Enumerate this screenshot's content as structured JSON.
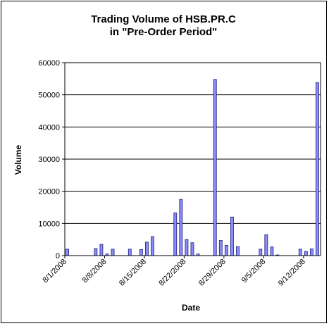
{
  "chart_data": {
    "type": "bar",
    "title_lines": [
      "Trading Volume of HSB.PR.C",
      "in \"Pre-Order Period\""
    ],
    "xlabel": "Date",
    "ylabel": "Volume",
    "ylim": [
      0,
      60000
    ],
    "y_ticks": [
      "0",
      "10000",
      "20000",
      "30000",
      "40000",
      "50000",
      "60000"
    ],
    "x_start": "2008-08-01",
    "x_end": "2008-09-15",
    "x_ticks": [
      {
        "date": "2008-08-01",
        "label": "8/1/2008"
      },
      {
        "date": "2008-08-08",
        "label": "8/8/2008"
      },
      {
        "date": "2008-08-15",
        "label": "8/15/2008"
      },
      {
        "date": "2008-08-22",
        "label": "8/22/2008"
      },
      {
        "date": "2008-08-29",
        "label": "8/29/2008"
      },
      {
        "date": "2008-09-05",
        "label": "9/5/2008"
      },
      {
        "date": "2008-09-12",
        "label": "9/12/2008"
      }
    ],
    "bars": [
      {
        "date": "2008-08-01",
        "value": 2000
      },
      {
        "date": "2008-08-06",
        "value": 2200
      },
      {
        "date": "2008-08-07",
        "value": 3500
      },
      {
        "date": "2008-08-08",
        "value": 500
      },
      {
        "date": "2008-08-09",
        "value": 2000
      },
      {
        "date": "2008-08-12",
        "value": 2000
      },
      {
        "date": "2008-08-14",
        "value": 1900
      },
      {
        "date": "2008-08-15",
        "value": 4200
      },
      {
        "date": "2008-08-16",
        "value": 5900
      },
      {
        "date": "2008-08-20",
        "value": 13300
      },
      {
        "date": "2008-08-21",
        "value": 17500
      },
      {
        "date": "2008-08-22",
        "value": 5000
      },
      {
        "date": "2008-08-23",
        "value": 4000
      },
      {
        "date": "2008-08-24",
        "value": 500
      },
      {
        "date": "2008-08-27",
        "value": 54800
      },
      {
        "date": "2008-08-28",
        "value": 4700
      },
      {
        "date": "2008-08-29",
        "value": 3200
      },
      {
        "date": "2008-08-30",
        "value": 12000
      },
      {
        "date": "2008-08-31",
        "value": 2800
      },
      {
        "date": "2008-09-04",
        "value": 2000
      },
      {
        "date": "2008-09-05",
        "value": 6500
      },
      {
        "date": "2008-09-06",
        "value": 2700
      },
      {
        "date": "2008-09-07",
        "value": 200
      },
      {
        "date": "2008-09-11",
        "value": 2000
      },
      {
        "date": "2008-09-12",
        "value": 1300
      },
      {
        "date": "2008-09-13",
        "value": 2100
      },
      {
        "date": "2008-09-14",
        "value": 53800
      }
    ],
    "grid": true,
    "bar_fill": "#8c8cff",
    "bar_stroke": "#1c1c70"
  }
}
